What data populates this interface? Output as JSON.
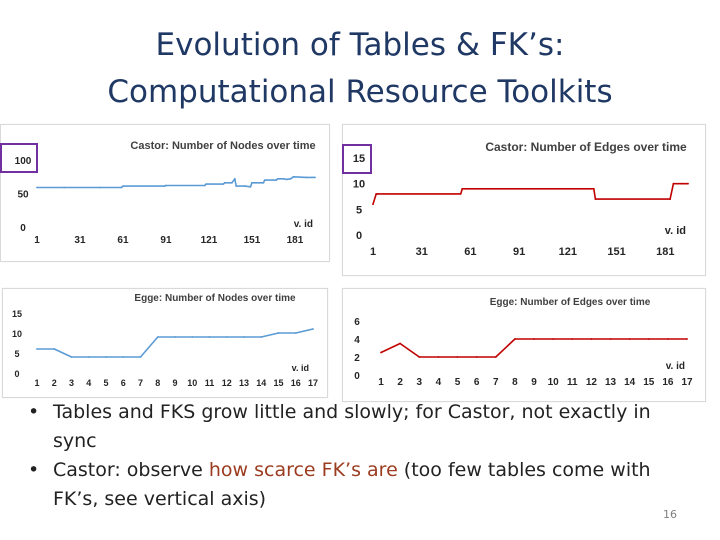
{
  "slide": {
    "title_line1": "Evolution of Tables & FK’s:",
    "title_line2": "Computational Resource Toolkits",
    "bullets": [
      {
        "parts": [
          {
            "text": "Tables and FKS grow little and slowly; for Castor, not exactly in sync",
            "emph": false
          }
        ]
      },
      {
        "parts": [
          {
            "text": "Castor: observe ",
            "emph": false
          },
          {
            "text": "how scarce FK’s are",
            "emph": true
          },
          {
            "text": " (too few tables come with FK’s, see vertical axis)",
            "emph": false
          }
        ]
      }
    ],
    "page_number": "16",
    "bullet_glyph": "•",
    "colors": {
      "title": "#1f3864",
      "emphasis": "#9b3b1f",
      "highlight_box": "#7030a0"
    }
  },
  "chart_data": [
    {
      "type": "line",
      "title": "Castor: Number of Nodes over time",
      "xlabel": "v. id",
      "x_ticks": [
        "1",
        "31",
        "61",
        "91",
        "121",
        "151",
        "181"
      ],
      "y_ticks": [
        "100",
        "50",
        "0"
      ],
      "ylim": [
        0,
        100
      ],
      "xlim": [
        1,
        195
      ],
      "color": "#5b9bd5",
      "grid": false,
      "highlighted_tick": "100",
      "x": [
        1,
        20,
        45,
        60,
        61,
        90,
        91,
        118,
        119,
        131,
        132,
        137,
        139,
        140,
        146,
        150,
        151,
        159,
        160,
        168,
        169,
        173,
        175,
        178,
        180,
        189,
        195
      ],
      "y": [
        59,
        59,
        59,
        59,
        61,
        61,
        62,
        62,
        64,
        64,
        66,
        66,
        72,
        61,
        61,
        60,
        66,
        66,
        70,
        70,
        72,
        72,
        71,
        72,
        75,
        74,
        74
      ]
    },
    {
      "type": "line",
      "title": "Castor: Number of Edges over time",
      "xlabel": "v. id",
      "x_ticks": [
        "1",
        "31",
        "61",
        "91",
        "121",
        "151",
        "181"
      ],
      "y_ticks": [
        "15",
        "10",
        "5",
        "0"
      ],
      "ylim": [
        0,
        15
      ],
      "xlim": [
        1,
        195
      ],
      "color": "#c00000",
      "grid": false,
      "highlighted_tick": "15",
      "x": [
        1,
        3,
        4,
        55,
        56,
        137,
        138,
        184,
        186,
        191,
        195
      ],
      "y": [
        6,
        8,
        8,
        8,
        9,
        9,
        7,
        7,
        10,
        10,
        10
      ]
    },
    {
      "type": "line",
      "title": "Egge: Number of Nodes over time",
      "xlabel": "v. id",
      "x_ticks": [
        "1",
        "2",
        "3",
        "4",
        "5",
        "6",
        "7",
        "8",
        "9",
        "10",
        "11",
        "12",
        "13",
        "14",
        "15",
        "16",
        "17"
      ],
      "y_ticks": [
        "15",
        "10",
        "5",
        "0"
      ],
      "ylim": [
        0,
        15
      ],
      "xlim": [
        1,
        17
      ],
      "color": "#5b9bd5",
      "grid": false,
      "x": [
        1,
        2,
        3,
        4,
        5,
        6,
        7,
        8,
        9,
        10,
        11,
        12,
        13,
        14,
        15,
        16,
        17
      ],
      "y": [
        6,
        6,
        4,
        4,
        4,
        4,
        4,
        9,
        9,
        9,
        9,
        9,
        9,
        9,
        10,
        10,
        11
      ]
    },
    {
      "type": "line",
      "title": "Egge: Number of Edges over time",
      "xlabel": "v. id",
      "x_ticks": [
        "1",
        "2",
        "3",
        "4",
        "5",
        "6",
        "7",
        "8",
        "9",
        "10",
        "11",
        "12",
        "13",
        "14",
        "15",
        "16",
        "17"
      ],
      "y_ticks": [
        "6",
        "4",
        "2",
        "0"
      ],
      "ylim": [
        0,
        6
      ],
      "xlim": [
        1,
        17
      ],
      "color": "#c00000",
      "grid": false,
      "x": [
        1,
        2,
        3,
        4,
        5,
        6,
        7,
        8,
        9,
        10,
        11,
        12,
        13,
        14,
        15,
        16,
        17
      ],
      "y": [
        2.5,
        3.5,
        2,
        2,
        2,
        2,
        2,
        4,
        4,
        4,
        4,
        4,
        4,
        4,
        4,
        4,
        4
      ]
    }
  ]
}
